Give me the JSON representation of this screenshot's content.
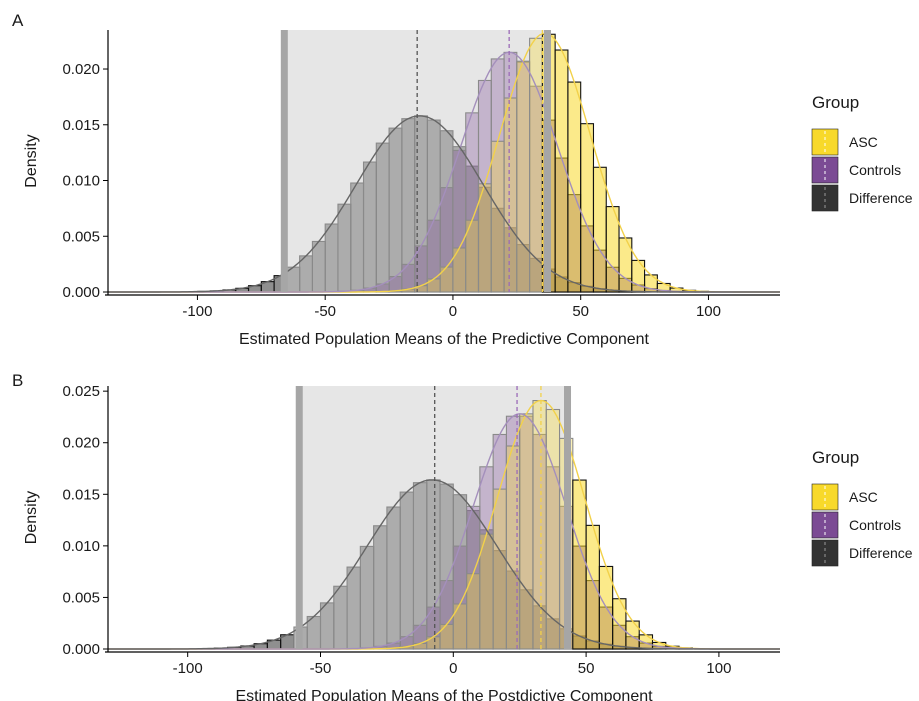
{
  "chart_data": [
    {
      "panel_label": "A",
      "type": "histogram",
      "xlabel": "Estimated Population Means of the Predictive Component",
      "ylabel": "Density",
      "xlim": [
        -135,
        128
      ],
      "ylim": [
        0,
        0.0235
      ],
      "x_ticks": [
        -100,
        -50,
        0,
        50,
        100
      ],
      "x_tick_labels": [
        "-100",
        "-50",
        "0",
        "50",
        "100"
      ],
      "y_ticks": [
        0.0,
        0.005,
        0.01,
        0.015,
        0.02
      ],
      "y_tick_labels": [
        "0.000",
        "0.005",
        "0.010",
        "0.015",
        "0.020"
      ],
      "bin_width": 5,
      "shaded_interval": [
        -66,
        37
      ],
      "legend": {
        "title": "Group",
        "entries": [
          {
            "label": "ASC",
            "color": "#F8D92A"
          },
          {
            "label": "Controls",
            "color": "#7B4B94"
          },
          {
            "label": "Difference",
            "color": "#333333"
          }
        ]
      },
      "series": [
        {
          "name": "ASC",
          "mean": 36,
          "sd": 17.8,
          "mode": 35,
          "peak_density": 0.0232,
          "color": "#F8D92A",
          "line_color": "#F2D14A"
        },
        {
          "name": "Controls",
          "mean": 22,
          "sd": 19,
          "mode": 22,
          "peak_density": 0.0215,
          "color": "#7B4B94",
          "line_color": "#A48FBC"
        },
        {
          "name": "Difference",
          "mean": -13,
          "sd": 25,
          "mode": -14,
          "peak_density": 0.0158,
          "color": "#333333",
          "line_color": "#666666"
        }
      ]
    },
    {
      "panel_label": "B",
      "type": "histogram",
      "xlabel": "Estimated Population Means of the Postdictive Component",
      "ylabel": "Density",
      "xlim": [
        -130,
        123
      ],
      "ylim": [
        0,
        0.0255
      ],
      "x_ticks": [
        -100,
        -50,
        0,
        50,
        100
      ],
      "x_tick_labels": [
        "-100",
        "-50",
        "0",
        "50",
        "100"
      ],
      "y_ticks": [
        0.0,
        0.005,
        0.01,
        0.015,
        0.02,
        0.025
      ],
      "y_tick_labels": [
        "0.000",
        "0.005",
        "0.010",
        "0.015",
        "0.020",
        "0.025"
      ],
      "bin_width": 5,
      "shaded_interval": [
        -58,
        43
      ],
      "legend": {
        "title": "Group",
        "entries": [
          {
            "label": "ASC",
            "color": "#F8D92A"
          },
          {
            "label": "Controls",
            "color": "#7B4B94"
          },
          {
            "label": "Difference",
            "color": "#333333"
          }
        ]
      },
      "series": [
        {
          "name": "ASC",
          "mean": 33,
          "sd": 16.5,
          "mode": 33,
          "peak_density": 0.0241,
          "color": "#F8D92A",
          "line_color": "#F2D14A"
        },
        {
          "name": "Controls",
          "mean": 25,
          "sd": 17.5,
          "mode": 24,
          "peak_density": 0.0228,
          "color": "#7B4B94",
          "line_color": "#A48FBC"
        },
        {
          "name": "Difference",
          "mean": -8,
          "sd": 24.5,
          "mode": -7,
          "peak_density": 0.0164,
          "color": "#333333",
          "line_color": "#666666"
        }
      ]
    }
  ]
}
